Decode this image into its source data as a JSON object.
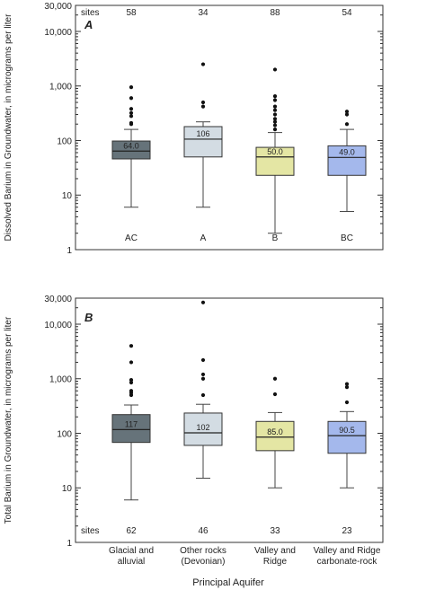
{
  "figure": {
    "x_axis_title": "Principal Aquifer",
    "categories": [
      "Glacial and\nalluvial",
      "Other rocks\n(Devonian)",
      "Valley and\nRidge",
      "Valley and Ridge\ncarbonate-rock"
    ],
    "colors": {
      "Glacial and alluvial": "#66737a",
      "Other rocks (Devonian)": "#d3dce3",
      "Valley and Ridge": "#e4e6a4",
      "Valley and Ridge carbonate-rock": "#a4b8ec"
    }
  },
  "chart_data": [
    {
      "type": "box",
      "panel_label": "A",
      "ylabel": "Dissolved Barium in Groundwater, in micrograms per liter",
      "yscale": "log",
      "ylim": [
        1,
        30000
      ],
      "yticks": [
        1,
        10,
        100,
        1000,
        10000,
        30000
      ],
      "ytick_labels": [
        "1",
        "10",
        "100",
        "1,000",
        "10,000",
        "30,000"
      ],
      "sites_label": "sites",
      "sites_position": "top",
      "categories": [
        "Glacial and alluvial",
        "Other rocks (Devonian)",
        "Valley and Ridge",
        "Valley and Ridge carbonate-rock"
      ],
      "sites": [
        58,
        34,
        88,
        54
      ],
      "median_labels": [
        "64.0",
        "106",
        "50.0",
        "49.0"
      ],
      "boxes": [
        {
          "whisker_low": 6,
          "q1": 46,
          "median": 64,
          "q3": 98,
          "whisker_high": 160,
          "outliers": [
            200,
            210,
            280,
            320,
            380,
            600,
            950
          ]
        },
        {
          "whisker_low": 6,
          "q1": 50,
          "median": 106,
          "q3": 180,
          "whisker_high": 220,
          "outliers": [
            420,
            500,
            2500
          ]
        },
        {
          "whisker_low": 2,
          "q1": 23,
          "median": 50,
          "q3": 75,
          "whisker_high": 140,
          "outliers": [
            160,
            190,
            220,
            250,
            300,
            360,
            420,
            550,
            650,
            2000
          ]
        },
        {
          "whisker_low": 5,
          "q1": 23,
          "median": 49,
          "q3": 80,
          "whisker_high": 160,
          "outliers": [
            200,
            300,
            340
          ]
        }
      ],
      "group_letters": [
        "AC",
        "A",
        "B",
        "BC"
      ]
    },
    {
      "type": "box",
      "panel_label": "B",
      "ylabel": "Total Barium in Groundwater, in micrograms per liter",
      "yscale": "log",
      "ylim": [
        1,
        30000
      ],
      "yticks": [
        1,
        10,
        100,
        1000,
        10000,
        30000
      ],
      "ytick_labels": [
        "1",
        "10",
        "100",
        "1,000",
        "10,000",
        "30,000"
      ],
      "sites_label": "sites",
      "sites_position": "bottom",
      "categories": [
        "Glacial and alluvial",
        "Other rocks (Devonian)",
        "Valley and Ridge",
        "Valley and Ridge carbonate-rock"
      ],
      "sites": [
        62,
        46,
        33,
        23
      ],
      "median_labels": [
        "117",
        "102",
        "85.0",
        "90.5"
      ],
      "boxes": [
        {
          "whisker_low": 6,
          "q1": 68,
          "median": 117,
          "q3": 220,
          "whisker_high": 330,
          "outliers": [
            500,
            550,
            600,
            850,
            950,
            2000,
            4000
          ]
        },
        {
          "whisker_low": 15,
          "q1": 60,
          "median": 102,
          "q3": 235,
          "whisker_high": 340,
          "outliers": [
            500,
            1000,
            1200,
            2200,
            25000
          ]
        },
        {
          "whisker_low": 10,
          "q1": 48,
          "median": 85,
          "q3": 165,
          "whisker_high": 240,
          "outliers": [
            520,
            1000
          ]
        },
        {
          "whisker_low": 10,
          "q1": 43,
          "median": 90.5,
          "q3": 165,
          "whisker_high": 250,
          "outliers": [
            370,
            700,
            800
          ]
        }
      ]
    }
  ]
}
